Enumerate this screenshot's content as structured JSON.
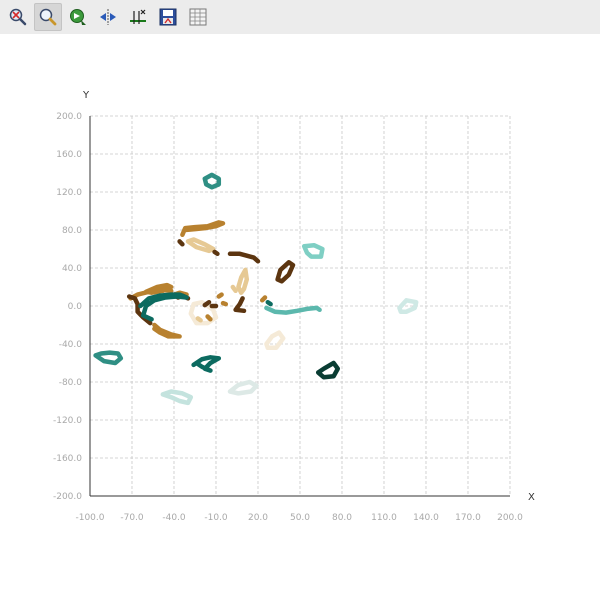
{
  "toolbar": {
    "buttons": [
      {
        "icon": "zoom-reset-icon",
        "active": false
      },
      {
        "icon": "zoom-icon",
        "active": true
      },
      {
        "icon": "pan-icon",
        "active": false
      },
      {
        "icon": "auto-fit-icon",
        "active": false
      },
      {
        "icon": "axis-settings-icon",
        "active": false
      },
      {
        "icon": "save-image-icon",
        "active": false
      },
      {
        "icon": "data-table-icon",
        "active": false
      }
    ]
  },
  "chart_data": {
    "type": "scatter",
    "xlabel": "X",
    "ylabel": "Y",
    "xlim": [
      -100,
      200
    ],
    "ylim": [
      -200,
      200
    ],
    "x_ticks": [
      "-100.0",
      "-70.0",
      "-40.0",
      "-10.0",
      "20.0",
      "50.0",
      "80.0",
      "110.0",
      "140.0",
      "170.0",
      "200.0"
    ],
    "y_ticks": [
      "200.0",
      "160.0",
      "120.0",
      "80.0",
      "40.0",
      "0.0",
      "-40.0",
      "-80.0",
      "-120.0",
      "-160.0",
      "-200.0"
    ],
    "grid": true,
    "colors": {
      "dark_brown": "#5c3510",
      "brown": "#b8812f",
      "tan": "#e6c994",
      "cream": "#f5ead7",
      "light_teal": "#7fcfc4",
      "teal": "#2f8f84",
      "dark_teal": "#0c6b60",
      "very_dark_teal": "#0a3d33",
      "pale_teal": "#cfe9e5"
    },
    "series": [
      {
        "color": "#2f8f84",
        "closed": true,
        "points": [
          [
            -13,
            125
          ],
          [
            -8,
            128
          ],
          [
            -8,
            134
          ],
          [
            -13,
            138
          ],
          [
            -18,
            134
          ],
          [
            -17,
            128
          ]
        ]
      },
      {
        "color": "#b8812f",
        "closed": false,
        "points": [
          [
            -32,
            80
          ],
          [
            -25,
            81
          ],
          [
            -18,
            82
          ],
          [
            -10,
            84
          ],
          [
            -5,
            87
          ],
          [
            -8,
            88
          ],
          [
            -16,
            84
          ],
          [
            -25,
            83
          ],
          [
            -32,
            82
          ],
          [
            -34,
            75
          ]
        ]
      },
      {
        "color": "#e6c994",
        "closed": true,
        "points": [
          [
            -30,
            68
          ],
          [
            -24,
            62
          ],
          [
            -15,
            58
          ],
          [
            -12,
            60
          ],
          [
            -18,
            65
          ],
          [
            -26,
            70
          ]
        ]
      },
      {
        "color": "#5c3510",
        "closed": false,
        "points": [
          [
            -36,
            68
          ],
          [
            -34,
            65
          ]
        ]
      },
      {
        "color": "#5c3510",
        "closed": false,
        "points": [
          [
            -11,
            57
          ],
          [
            -9,
            55
          ]
        ]
      },
      {
        "color": "#5c3510",
        "closed": false,
        "points": [
          [
            0,
            55
          ],
          [
            7,
            55
          ],
          [
            12,
            53
          ],
          [
            17,
            51
          ],
          [
            20,
            47
          ]
        ]
      },
      {
        "color": "#7fcfc4",
        "closed": true,
        "points": [
          [
            53,
            63
          ],
          [
            60,
            64
          ],
          [
            66,
            60
          ],
          [
            65,
            52
          ],
          [
            58,
            52
          ],
          [
            55,
            56
          ]
        ]
      },
      {
        "color": "#5c3510",
        "closed": true,
        "points": [
          [
            42,
            46
          ],
          [
            45,
            43
          ],
          [
            42,
            33
          ],
          [
            37,
            26
          ],
          [
            34,
            28
          ],
          [
            36,
            38
          ]
        ]
      },
      {
        "color": "#e6c994",
        "closed": true,
        "points": [
          [
            11,
            38
          ],
          [
            12,
            28
          ],
          [
            10,
            18
          ],
          [
            8,
            14
          ],
          [
            6,
            20
          ],
          [
            8,
            30
          ]
        ]
      },
      {
        "color": "#e6c994",
        "closed": false,
        "points": [
          [
            2,
            20
          ],
          [
            4,
            16
          ]
        ]
      },
      {
        "color": "#5c3510",
        "closed": false,
        "points": [
          [
            9,
            8
          ],
          [
            7,
            2
          ],
          [
            4,
            -4
          ],
          [
            10,
            -5
          ]
        ]
      },
      {
        "color": "#b8812f",
        "closed": false,
        "points": [
          [
            -71,
            8
          ],
          [
            -66,
            12
          ],
          [
            -58,
            15
          ],
          [
            -50,
            17
          ],
          [
            -42,
            16
          ]
        ]
      },
      {
        "color": "#b8812f",
        "closed": true,
        "points": [
          [
            -60,
            15
          ],
          [
            -52,
            20
          ],
          [
            -45,
            22
          ],
          [
            -42,
            20
          ],
          [
            -48,
            16
          ],
          [
            -56,
            14
          ]
        ]
      },
      {
        "color": "#b8812f",
        "closed": false,
        "points": [
          [
            -40,
            12
          ],
          [
            -36,
            14
          ],
          [
            -31,
            12
          ]
        ]
      },
      {
        "color": "#5c3510",
        "closed": false,
        "points": [
          [
            -72,
            10
          ],
          [
            -68,
            8
          ],
          [
            -66,
            2
          ],
          [
            -66,
            -6
          ],
          [
            -62,
            -12
          ],
          [
            -57,
            -18
          ]
        ]
      },
      {
        "color": "#5c3510",
        "closed": false,
        "points": [
          [
            -41,
            12
          ],
          [
            -37,
            9
          ],
          [
            -34,
            11
          ],
          [
            -30,
            8
          ]
        ]
      },
      {
        "color": "#0c6b60",
        "closed": false,
        "points": [
          [
            -64,
            0
          ],
          [
            -58,
            8
          ],
          [
            -50,
            11
          ],
          [
            -42,
            12
          ],
          [
            -36,
            12
          ],
          [
            -31,
            9
          ],
          [
            -38,
            10
          ],
          [
            -46,
            9
          ],
          [
            -54,
            6
          ],
          [
            -60,
            0
          ],
          [
            -62,
            -10
          ],
          [
            -56,
            -14
          ]
        ]
      },
      {
        "color": "#b8812f",
        "closed": false,
        "points": [
          [
            -54,
            -20
          ],
          [
            -50,
            -25
          ],
          [
            -42,
            -30
          ],
          [
            -36,
            -32
          ],
          [
            -44,
            -32
          ],
          [
            -50,
            -28
          ],
          [
            -54,
            -24
          ]
        ]
      },
      {
        "color": "#f5ead7",
        "closed": true,
        "points": [
          [
            -20,
            4
          ],
          [
            -26,
            2
          ],
          [
            -28,
            -8
          ],
          [
            -24,
            -18
          ],
          [
            -16,
            -18
          ],
          [
            -10,
            -12
          ],
          [
            -12,
            -4
          ]
        ]
      },
      {
        "color": "#b8812f",
        "closed": false,
        "points": [
          [
            -16,
            -11
          ],
          [
            -14,
            -14
          ]
        ]
      },
      {
        "color": "#5c3510",
        "closed": false,
        "points": [
          [
            -13,
            0
          ],
          [
            -10,
            0
          ]
        ]
      },
      {
        "color": "#5c3510",
        "closed": false,
        "points": [
          [
            -18,
            1
          ],
          [
            -15,
            4
          ]
        ]
      },
      {
        "color": "#b8812f",
        "closed": false,
        "points": [
          [
            -8,
            10
          ],
          [
            -6,
            12
          ]
        ]
      },
      {
        "color": "#b8812f",
        "closed": false,
        "points": [
          [
            -5,
            3
          ],
          [
            -3,
            2
          ]
        ]
      },
      {
        "color": "#e6c994",
        "closed": false,
        "points": [
          [
            -23,
            -13
          ],
          [
            -21,
            -15
          ]
        ]
      },
      {
        "color": "#b8812f",
        "closed": false,
        "points": [
          [
            23,
            6
          ],
          [
            25,
            9
          ]
        ]
      },
      {
        "color": "#0c6b60",
        "closed": false,
        "points": [
          [
            27,
            4
          ],
          [
            29,
            2
          ]
        ]
      },
      {
        "color": "#5cb8ad",
        "closed": false,
        "points": [
          [
            26,
            -2
          ],
          [
            32,
            -6
          ],
          [
            40,
            -7
          ],
          [
            48,
            -5
          ],
          [
            55,
            -3
          ],
          [
            62,
            -2
          ],
          [
            64,
            -4
          ]
        ]
      },
      {
        "color": "#f5ead7",
        "closed": true,
        "points": [
          [
            26,
            -40
          ],
          [
            30,
            -32
          ],
          [
            35,
            -28
          ],
          [
            38,
            -34
          ],
          [
            33,
            -44
          ],
          [
            27,
            -44
          ]
        ]
      },
      {
        "color": "#cfe9e5",
        "closed": true,
        "points": [
          [
            121,
            -2
          ],
          [
            126,
            6
          ],
          [
            133,
            4
          ],
          [
            132,
            -2
          ],
          [
            126,
            -6
          ],
          [
            122,
            -6
          ]
        ]
      },
      {
        "color": "#2f8f84",
        "closed": true,
        "points": [
          [
            -92,
            -50
          ],
          [
            -86,
            -49
          ],
          [
            -80,
            -50
          ],
          [
            -78,
            -55
          ],
          [
            -82,
            -60
          ],
          [
            -90,
            -58
          ],
          [
            -96,
            -52
          ]
        ]
      },
      {
        "color": "#0c6b60",
        "closed": false,
        "points": [
          [
            -26,
            -62
          ],
          [
            -20,
            -56
          ],
          [
            -14,
            -54
          ],
          [
            -8,
            -55
          ],
          [
            -14,
            -60
          ],
          [
            -18,
            -66
          ],
          [
            -14,
            -68
          ],
          [
            -20,
            -64
          ],
          [
            -24,
            -60
          ]
        ]
      },
      {
        "color": "#0a3d33",
        "closed": true,
        "points": [
          [
            67,
            -66
          ],
          [
            74,
            -60
          ],
          [
            77,
            -66
          ],
          [
            74,
            -74
          ],
          [
            67,
            -75
          ],
          [
            63,
            -70
          ]
        ]
      },
      {
        "color": "#dde9e6",
        "closed": true,
        "points": [
          [
            0,
            -90
          ],
          [
            6,
            -83
          ],
          [
            14,
            -80
          ],
          [
            19,
            -84
          ],
          [
            15,
            -90
          ],
          [
            6,
            -92
          ]
        ]
      },
      {
        "color": "#c4e3de",
        "closed": true,
        "points": [
          [
            -48,
            -93
          ],
          [
            -42,
            -90
          ],
          [
            -34,
            -92
          ],
          [
            -28,
            -96
          ],
          [
            -30,
            -102
          ],
          [
            -36,
            -100
          ],
          [
            -42,
            -96
          ]
        ]
      }
    ]
  }
}
